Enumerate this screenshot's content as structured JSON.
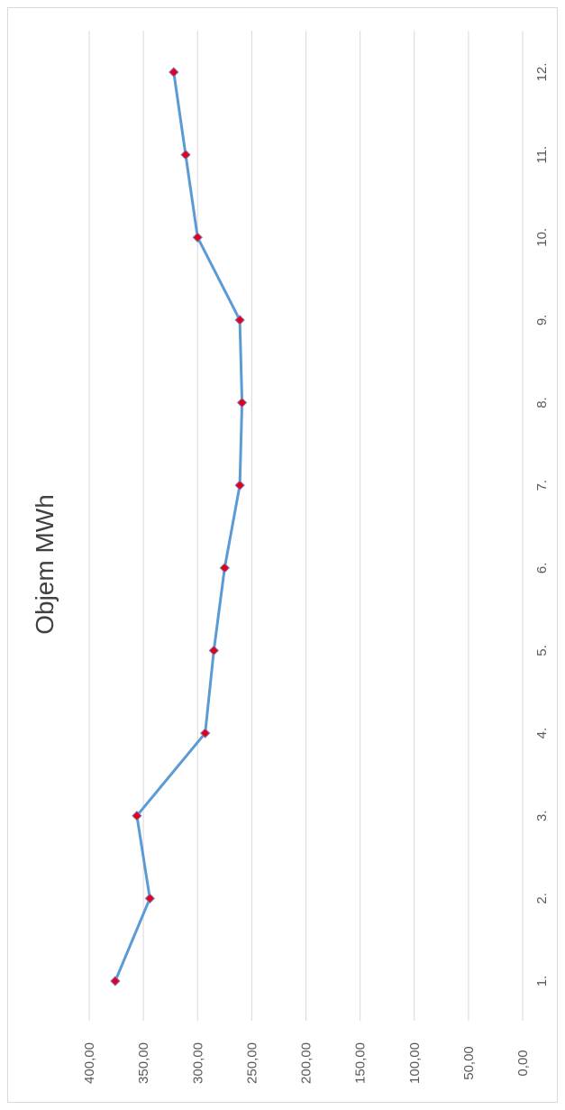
{
  "chart_data": {
    "type": "line",
    "title": "Objem MWh",
    "orientation": "rotated-90-clockwise",
    "categories": [
      "1.",
      "2.",
      "3.",
      "4.",
      "5.",
      "6.",
      "7.",
      "8.",
      "9.",
      "10.",
      "11.",
      "12."
    ],
    "series": [
      {
        "values": [
          376,
          344,
          356,
          293,
          285,
          275,
          261,
          259,
          261,
          300,
          311,
          322
        ]
      }
    ],
    "y_tick_labels": [
      "0,00",
      "50,00",
      "100,00",
      "150,00",
      "200,00",
      "250,00",
      "300,00",
      "350,00",
      "400,00"
    ],
    "ylim": [
      0,
      400
    ],
    "grid": true,
    "legend": "none",
    "colors": {
      "line": "#5b9bd5",
      "marker_fill": "#e3001b",
      "marker_stroke": "#7f7fbf",
      "gridline": "#d9d9d9",
      "text": "#595959",
      "title": "#404040"
    }
  }
}
